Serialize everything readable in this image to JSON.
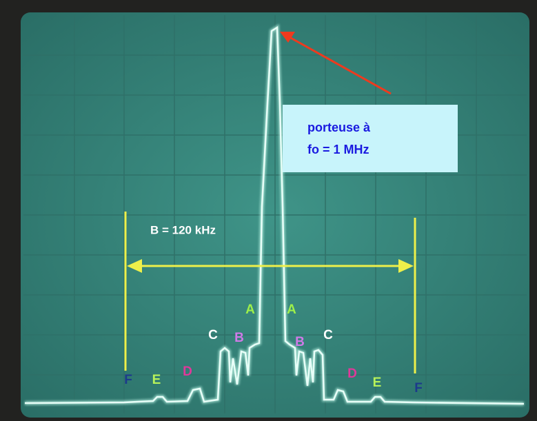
{
  "callout": {
    "lines": [
      "porteuse à",
      "fo = 1 MHz"
    ]
  },
  "bandwidth_label": "B  = 120 kHz",
  "peak_labels": [
    "F",
    "E",
    "D",
    "C",
    "B",
    "A",
    "A",
    "B",
    "C",
    "D",
    "E",
    "F"
  ]
}
